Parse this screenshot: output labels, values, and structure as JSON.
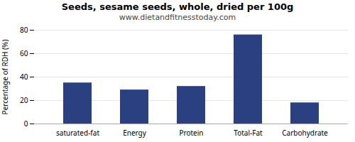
{
  "chart_data": {
    "type": "bar",
    "title": "Seeds, sesame seeds, whole, dried per 100g",
    "subtitle": "www.dietandfitnesstoday.com",
    "categories": [
      "saturated-fat",
      "Energy",
      "Protein",
      "Total-Fat",
      "Carbohydrate"
    ],
    "values": [
      35,
      29,
      32,
      76,
      18
    ],
    "color": "#2a4080",
    "ylabel": "Percentage of RDH (%)",
    "ylim": [
      0,
      80
    ],
    "yticks": [
      0,
      20,
      40,
      60,
      80
    ],
    "grid": true
  }
}
